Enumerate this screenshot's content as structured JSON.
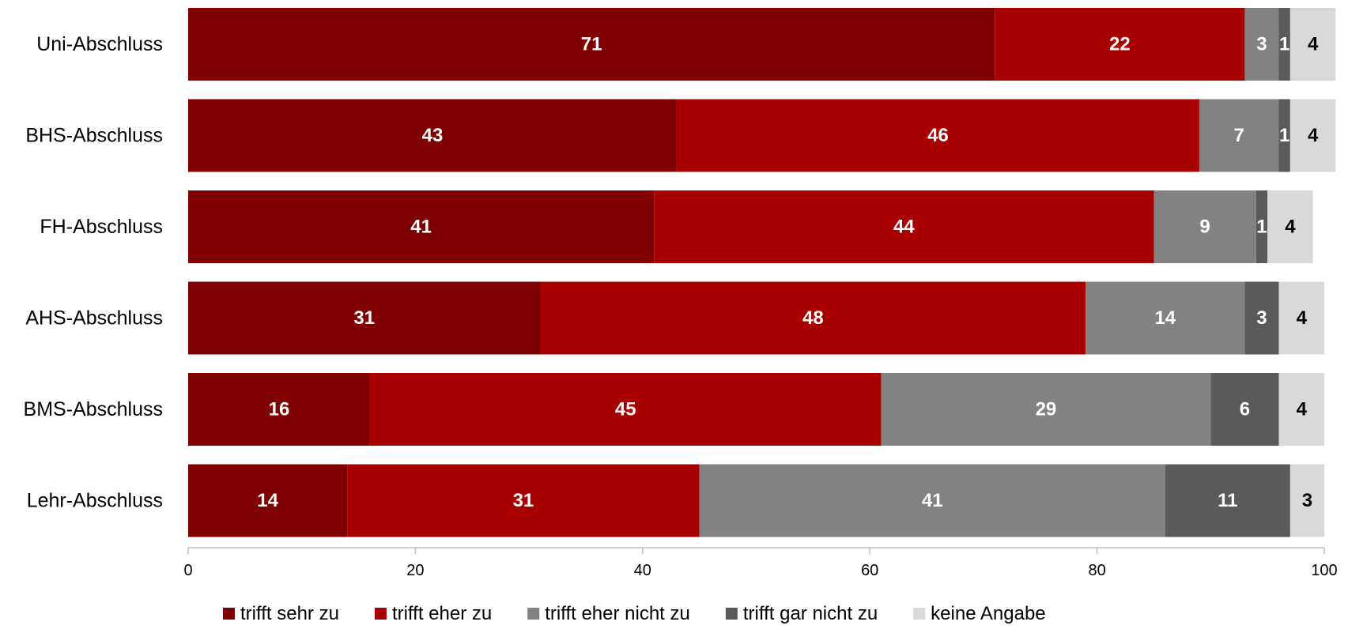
{
  "chart_data": {
    "type": "bar",
    "orientation": "horizontal",
    "stacked": true,
    "title": "",
    "xlabel": "",
    "ylabel": "",
    "xlim": [
      0,
      100
    ],
    "x_ticks": [
      0,
      20,
      40,
      60,
      80,
      100
    ],
    "grid": false,
    "legend_position": "bottom",
    "categories": [
      "Uni-Abschluss",
      "BHS-Abschluss",
      "FH-Abschluss",
      "AHS-Abschluss",
      "BMS-Abschluss",
      "Lehr-Abschluss"
    ],
    "series": [
      {
        "name": "trifft sehr zu",
        "color": "#7f0000",
        "label_color": "#ffffff",
        "values": [
          71,
          43,
          41,
          31,
          16,
          14
        ]
      },
      {
        "name": "trifft eher zu",
        "color": "#a80000",
        "label_color": "#ffffff",
        "values": [
          22,
          46,
          44,
          48,
          45,
          31
        ]
      },
      {
        "name": "trifft eher nicht zu",
        "color": "#828282",
        "label_color": "#ffffff",
        "values": [
          3,
          7,
          9,
          14,
          29,
          41
        ]
      },
      {
        "name": "trifft gar nicht zu",
        "color": "#5a5a5a",
        "label_color": "#ffffff",
        "values": [
          1,
          1,
          1,
          3,
          6,
          11
        ]
      },
      {
        "name": "keine Angabe",
        "color": "#d9d9d9",
        "label_color": "#000000",
        "values": [
          4,
          4,
          4,
          4,
          4,
          3
        ]
      }
    ]
  }
}
